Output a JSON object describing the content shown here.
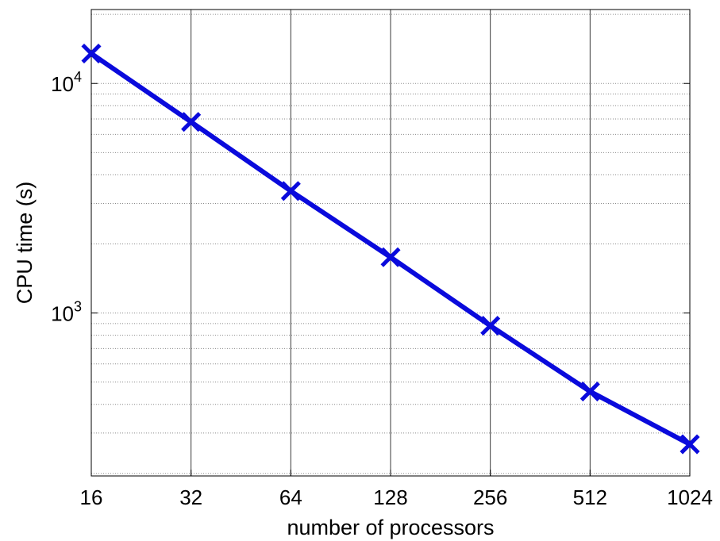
{
  "chart_data": {
    "type": "line",
    "title": "",
    "xlabel": "number of processors",
    "ylabel": "CPU time (s)",
    "x_scale": "log2",
    "y_scale": "log10",
    "x": [
      16,
      32,
      64,
      128,
      256,
      512,
      1024
    ],
    "x_tick_labels": [
      "16",
      "32",
      "64",
      "128",
      "256",
      "512",
      "1024"
    ],
    "y_ticks": [
      {
        "value": 1000,
        "base": "10",
        "exp": "3"
      },
      {
        "value": 10000,
        "base": "10",
        "exp": "4"
      }
    ],
    "xlim": [
      16,
      1024
    ],
    "ylim": [
      195,
      21000
    ],
    "grid": true,
    "series": [
      {
        "values": [
          13500,
          6800,
          3400,
          1750,
          880,
          455,
          268
        ],
        "color": "#0a0adc",
        "marker": "x"
      }
    ]
  }
}
